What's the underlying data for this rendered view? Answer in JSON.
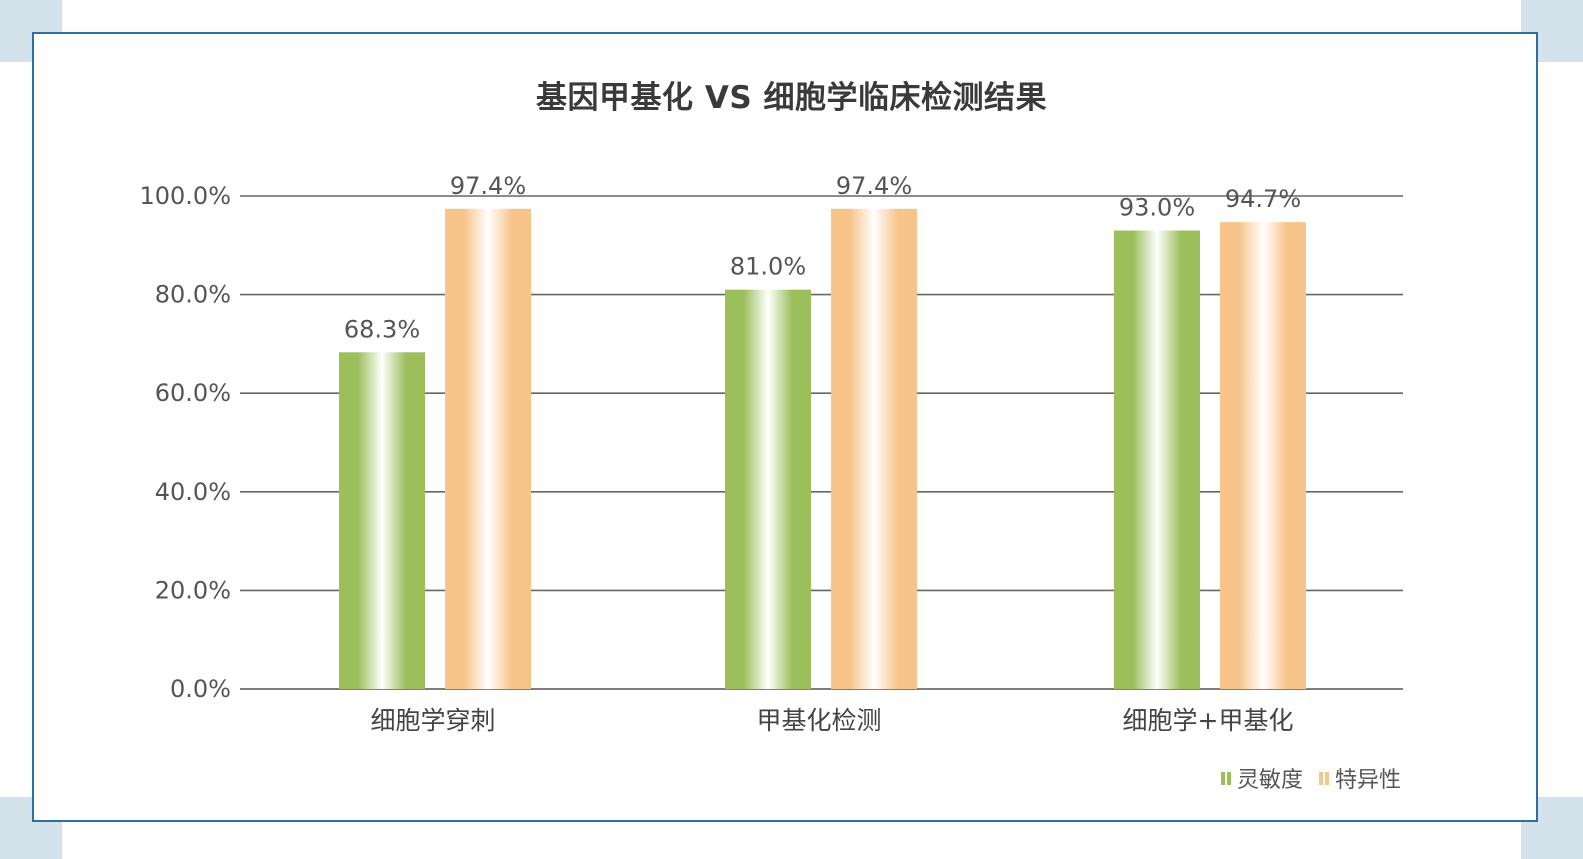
{
  "chart_data": {
    "type": "bar",
    "title": "基因甲基化 VS 细胞学临床检测结果",
    "categories": [
      "细胞学穿刺",
      "甲基化检测",
      "细胞学+甲基化"
    ],
    "series": [
      {
        "name": "灵敏度",
        "values": [
          68.3,
          81.0,
          93.0
        ],
        "labels": [
          "68.3%",
          "81.0%",
          "93.0%"
        ],
        "color": "#9cbf5c"
      },
      {
        "name": "特异性",
        "values": [
          97.4,
          97.4,
          94.7
        ],
        "labels": [
          "97.4%",
          "97.4%",
          "94.7%"
        ],
        "color": "#f7c48a"
      }
    ],
    "ylim": [
      0,
      100
    ],
    "yticks": [
      "0.0%",
      "20.0%",
      "40.0%",
      "60.0%",
      "80.0%",
      "100.0%"
    ],
    "ytick_values": [
      0,
      20,
      40,
      60,
      80,
      100
    ],
    "grid": true,
    "legend_position": "bottom-right"
  }
}
